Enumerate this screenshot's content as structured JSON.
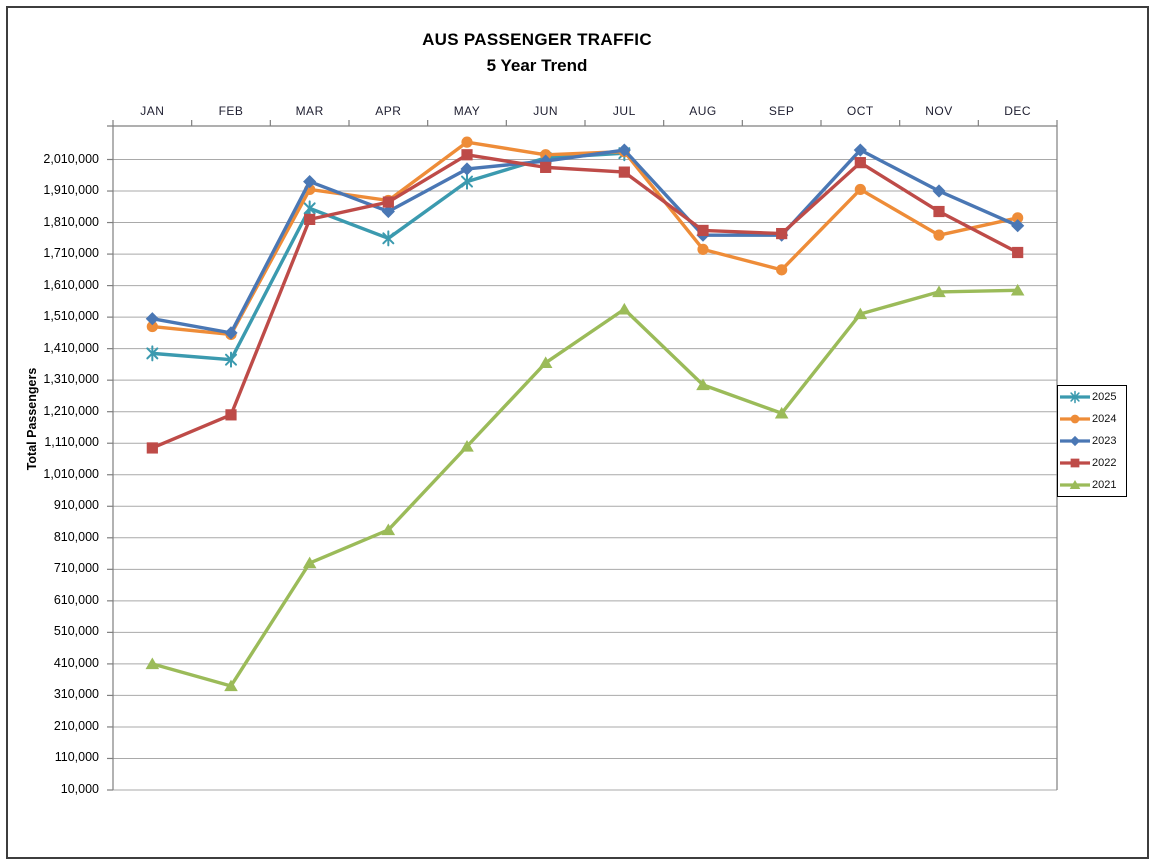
{
  "chart_data": {
    "type": "line",
    "title": "AUS PASSENGER TRAFFIC",
    "subtitle": "5 Year Trend",
    "xlabel": "",
    "ylabel": "Total Passengers",
    "categories": [
      "JAN",
      "FEB",
      "MAR",
      "APR",
      "MAY",
      "JUN",
      "JUL",
      "AUG",
      "SEP",
      "OCT",
      "NOV",
      "DEC"
    ],
    "series": [
      {
        "name": "2025",
        "color": "#3B9AAF",
        "marker": "asterisk",
        "values": [
          1395000,
          1375000,
          1855000,
          1760000,
          1940000,
          2015000,
          2030000,
          null,
          null,
          null,
          null,
          null
        ]
      },
      {
        "name": "2024",
        "color": "#EE8C38",
        "marker": "circle",
        "values": [
          1480000,
          1455000,
          1915000,
          1880000,
          2065000,
          2025000,
          2035000,
          1725000,
          1660000,
          1915000,
          1770000,
          1825000
        ]
      },
      {
        "name": "2023",
        "color": "#4A77B4",
        "marker": "diamond",
        "values": [
          1505000,
          1460000,
          1940000,
          1845000,
          1980000,
          2005000,
          2040000,
          1770000,
          1770000,
          2040000,
          1910000,
          1800000
        ]
      },
      {
        "name": "2022",
        "color": "#BE4B48",
        "marker": "square",
        "values": [
          1095000,
          1200000,
          1820000,
          1875000,
          2025000,
          1985000,
          1970000,
          1785000,
          1775000,
          2000000,
          1845000,
          1715000
        ]
      },
      {
        "name": "2021",
        "color": "#9BBB59",
        "marker": "triangle-up",
        "values": [
          410000,
          340000,
          730000,
          835000,
          1100000,
          1365000,
          1535000,
          1295000,
          1205000,
          1520000,
          1590000,
          1595000
        ]
      }
    ],
    "y_axis": {
      "min": 10000,
      "max": 2010000,
      "step": 100000,
      "tick_labels": [
        "2,010,000",
        "1,910,000",
        "1,810,000",
        "1,710,000",
        "1,610,000",
        "1,510,000",
        "1,410,000",
        "1,310,000",
        "1,210,000",
        "1,110,000",
        "1,010,000",
        "910,000",
        "810,000",
        "710,000",
        "610,000",
        "510,000",
        "410,000",
        "310,000",
        "210,000",
        "110,000",
        "10,000"
      ]
    },
    "legend": {
      "position": "right-middle",
      "entries": [
        "2025",
        "2024",
        "2023",
        "2022",
        "2021"
      ]
    },
    "grid": "horizontal",
    "colors": {
      "gridline": "#A9A9A9",
      "axis": "#7F7F7F",
      "outer_border": "#3D3D3D",
      "text": "#000000"
    }
  }
}
